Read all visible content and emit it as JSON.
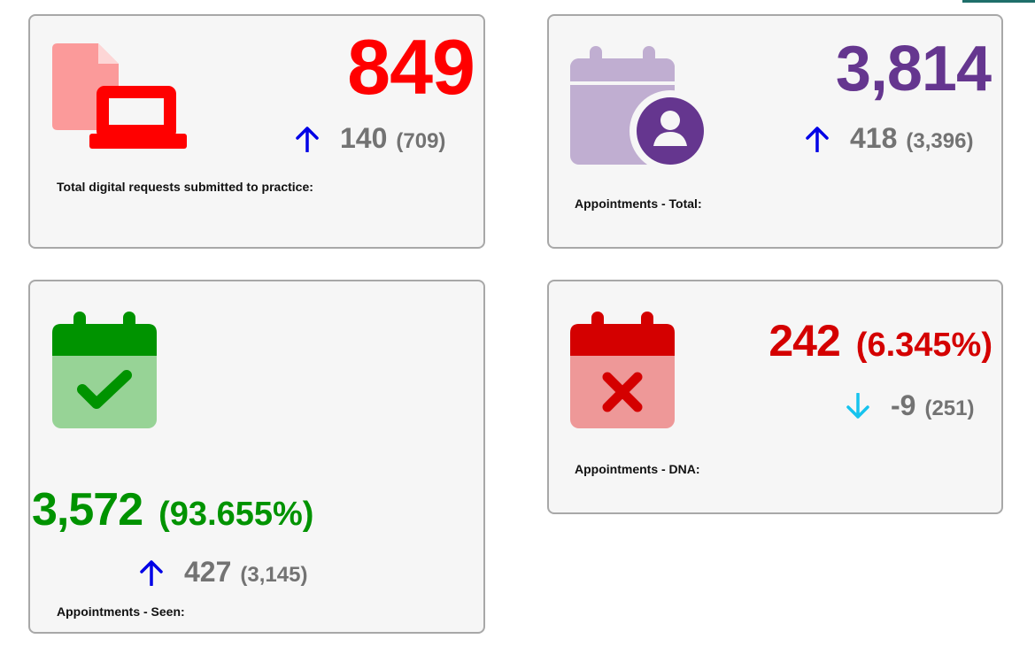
{
  "colors": {
    "red": "#ff0000",
    "purple": "#65368f",
    "green": "#009300",
    "dark_red": "#d40000",
    "grey": "#737373",
    "up_arrow": "#0000e6",
    "down_arrow": "#16c3ee",
    "card_bg": "#f6f6f6",
    "card_border": "#a8a8a8"
  },
  "cards": [
    {
      "caption": "Total digital requests submitted to practice:",
      "value": "849",
      "change": "140",
      "previous": "(709)",
      "trend": "up",
      "icon": "digital-request-laptop-icon"
    },
    {
      "caption": "Appointments - Total:",
      "value": "3,814",
      "change": "418",
      "previous": "(3,396)",
      "trend": "up",
      "icon": "calendar-person-icon"
    },
    {
      "caption": "Appointments - Seen:",
      "value": "3,572",
      "percent": "(93.655%)",
      "change": "427",
      "previous": "(3,145)",
      "trend": "up",
      "icon": "calendar-check-icon"
    },
    {
      "caption": "Appointments - DNA:",
      "value": "242",
      "percent": "(6.345%)",
      "change": "-9",
      "previous": "(251)",
      "trend": "down",
      "icon": "calendar-cross-icon"
    }
  ]
}
